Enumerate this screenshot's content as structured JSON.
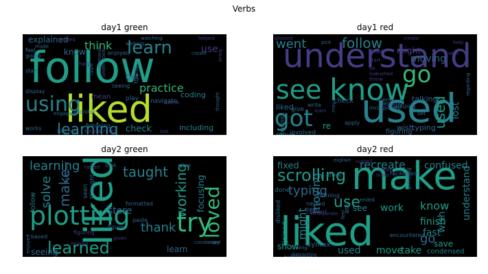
{
  "title": "Verbs",
  "chart_data": {
    "type": "wordcloud",
    "colormap": "viridis",
    "background": "#000000",
    "grid": false,
    "panels": [
      {
        "title": "day1 green",
        "words": [
          "follow",
          "liked",
          "using",
          "learn",
          "learning",
          "think",
          "practice",
          "explained",
          "know",
          "use",
          "got",
          "mean",
          "check",
          "coding",
          "including",
          "thank",
          "play",
          "navigate",
          "came",
          "enjoyed",
          "feel",
          "going",
          "start",
          "display",
          "works",
          "help",
          "seeing",
          "following",
          "monitor",
          "engaging",
          "made",
          "create",
          "related",
          "walking",
          "watching",
          "helped",
          "type",
          "commands",
          "understood",
          "explaining",
          "learned",
          "lost",
          "thought",
          "bring"
        ]
      },
      {
        "title": "day1 red",
        "words": [
          "understand",
          "used",
          "got",
          "know",
          "see",
          "go",
          "went",
          "follow",
          "moving",
          "might",
          "liked",
          "talking",
          "used",
          "lost",
          "check",
          "move",
          "give",
          "involved",
          "re",
          "typing",
          "wish",
          "figuring",
          "gone",
          "apply",
          "incorporate",
          "utilizing",
          "deleting",
          "spend",
          "set",
          "rushed",
          "write",
          "learn",
          "may",
          "making",
          "create",
          "glossed",
          "pick",
          "hold",
          "ve",
          "live",
          "start",
          "throw",
          "made",
          "help",
          "regarding"
        ]
      },
      {
        "title": "day2 green",
        "words": [
          "liked",
          "plotting",
          "try",
          "learned",
          "taught",
          "loved",
          "learning",
          "solve",
          "make",
          "working",
          "thank",
          "focusing",
          "store",
          "seeing",
          "follow",
          "learn",
          "based",
          "figuring",
          "formatted",
          "paste",
          "give",
          "look",
          "seen",
          "thought",
          "given",
          "figure",
          "looping",
          "condensed",
          "copy",
          "enjoyed",
          "analyzed",
          "tasted"
        ]
      },
      {
        "title": "day2 red",
        "words": [
          "make",
          "liked",
          "scrolling",
          "typing",
          "fixed",
          "explain",
          "recreate",
          "confused",
          "know",
          "use",
          "see",
          "work",
          "moving",
          "finish",
          "wish",
          "understand",
          "save",
          "fast",
          "go",
          "take",
          "move",
          "used",
          "show",
          "joined",
          "might",
          "condensed",
          "syntax",
          "disliked",
          "done",
          "stuck",
          "returning",
          "nested",
          "need",
          "convert",
          "ask",
          "ended",
          "encountered",
          "facilitated",
          "highlighting",
          "finding",
          "distracting",
          "rushed",
          "feel",
          "made",
          "incorporate",
          "printing",
          "make"
        ]
      }
    ]
  }
}
